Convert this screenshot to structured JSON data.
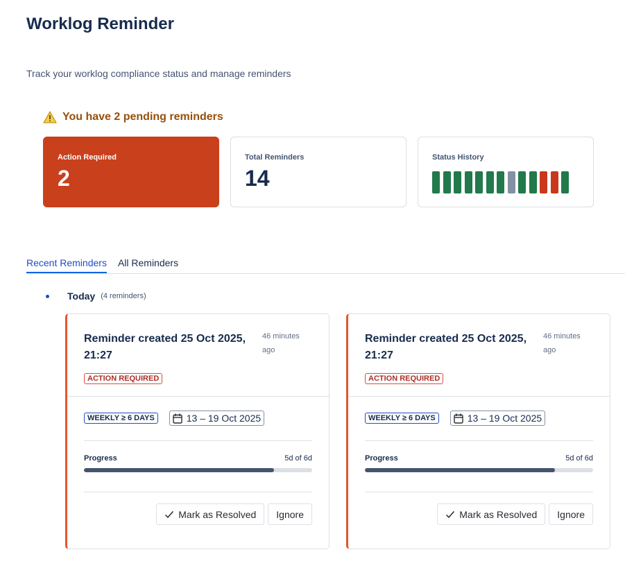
{
  "header": {
    "title": "Worklog Reminder",
    "subtitle": "Track your worklog compliance status and manage reminders"
  },
  "warning": {
    "text": "You have 2 pending reminders"
  },
  "summary": {
    "action_required": {
      "label": "Action Required",
      "value": "2"
    },
    "total": {
      "label": "Total Reminders",
      "value": "14"
    },
    "status_history": {
      "label": "Status History",
      "colors": [
        "#22794b",
        "#22794b",
        "#22794b",
        "#22794b",
        "#22794b",
        "#22794b",
        "#22794b",
        "#8590a2",
        "#22794b",
        "#22794b",
        "#c9371c",
        "#c9371c",
        "#22794b"
      ]
    }
  },
  "tabs": [
    {
      "label": "Recent Reminders",
      "active": true
    },
    {
      "label": "All Reminders",
      "active": false
    }
  ],
  "groups": [
    {
      "label": "Today",
      "count_label": "(4 reminders)",
      "reminders": [
        {
          "title": "Reminder created 25 Oct 2025, 21:27",
          "time": "46 minutes ago",
          "status": "ACTION REQUIRED",
          "rule": "WEEKLY ≥ 6 DAYS",
          "period": "13 – 19 Oct 2025",
          "progress": {
            "label": "Progress",
            "value": 5,
            "max": 6,
            "value_label": "5d of 6d"
          },
          "actions": [
            "Mark as Resolved",
            "Ignore"
          ]
        },
        {
          "title": "Reminder created 25 Oct 2025, 21:27",
          "time": "46 minutes ago",
          "status": "ACTION REQUIRED",
          "rule": "WEEKLY ≥ 6 DAYS",
          "period": "13 – 19 Oct 2025",
          "progress": {
            "label": "Progress",
            "value": 5,
            "max": 6,
            "value_label": "5d of 6d"
          },
          "actions": [
            "Mark as Resolved",
            "Ignore"
          ]
        }
      ]
    }
  ]
}
